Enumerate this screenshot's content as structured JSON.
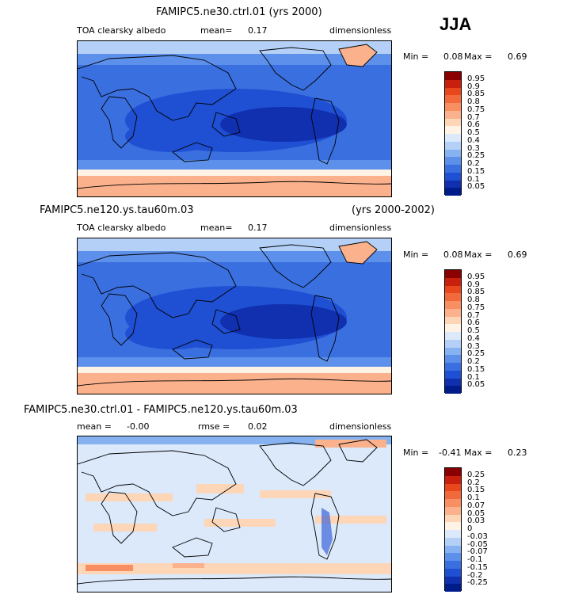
{
  "season": "JJA",
  "panels": [
    {
      "title": "FAMIPC5.ne30.ctrl.01 (yrs 2000)",
      "variable": "TOA clearsky albedo",
      "mean_label": "mean=",
      "mean_value": "0.17",
      "units": "dimensionless",
      "min_label": "Min =",
      "min_value": "0.08",
      "max_label": "Max =",
      "max_value": "0.69",
      "colorbar_labels": [
        "0.95",
        "0.9",
        "0.85",
        "0.8",
        "0.75",
        "0.7",
        "0.6",
        "0.5",
        "0.4",
        "0.3",
        "0.25",
        "0.2",
        "0.15",
        "0.1",
        "0.05"
      ],
      "colorbar_colors": [
        "#8b0000",
        "#c8200c",
        "#e8461c",
        "#f26a3c",
        "#f78f62",
        "#fab18c",
        "#fdd6b8",
        "#fff3e6",
        "#dbe9fb",
        "#b4d0f7",
        "#86b2f1",
        "#5c90ea",
        "#3a6fe0",
        "#1f4fd2",
        "#1030b0",
        "#001b8a"
      ]
    },
    {
      "title_left": "FAMIPC5.ne120.ys.tau60m.03",
      "title_right": "(yrs 2000-2002)",
      "variable": "TOA clearsky albedo",
      "mean_label": "mean=",
      "mean_value": "0.17",
      "units": "dimensionless",
      "min_label": "Min =",
      "min_value": "0.08",
      "max_label": "Max =",
      "max_value": "0.69",
      "colorbar_labels": [
        "0.95",
        "0.9",
        "0.85",
        "0.8",
        "0.75",
        "0.7",
        "0.6",
        "0.5",
        "0.4",
        "0.3",
        "0.25",
        "0.2",
        "0.15",
        "0.1",
        "0.05"
      ],
      "colorbar_colors": [
        "#8b0000",
        "#c8200c",
        "#e8461c",
        "#f26a3c",
        "#f78f62",
        "#fab18c",
        "#fdd6b8",
        "#fff3e6",
        "#dbe9fb",
        "#b4d0f7",
        "#86b2f1",
        "#5c90ea",
        "#3a6fe0",
        "#1f4fd2",
        "#1030b0",
        "#001b8a"
      ]
    },
    {
      "title": "FAMIPC5.ne30.ctrl.01 - FAMIPC5.ne120.ys.tau60m.03",
      "mean_label": "mean =",
      "mean_value": "-0.00",
      "rmse_label": "rmse =",
      "rmse_value": "0.02",
      "units": "dimensionless",
      "min_label": "Min =",
      "min_value": "-0.41",
      "max_label": "Max =",
      "max_value": "0.23",
      "colorbar_labels": [
        "0.25",
        "0.2",
        "0.15",
        "0.1",
        "0.07",
        "0.05",
        "0.03",
        "0",
        "-0.03",
        "-0.05",
        "-0.07",
        "-0.1",
        "-0.15",
        "-0.2",
        "-0.25"
      ],
      "colorbar_colors": [
        "#8b0000",
        "#c8200c",
        "#e8461c",
        "#f26a3c",
        "#f78f62",
        "#fab18c",
        "#fdd6b8",
        "#fff3e6",
        "#dbe9fb",
        "#b4d0f7",
        "#86b2f1",
        "#5c90ea",
        "#3a6fe0",
        "#1f4fd2",
        "#1030b0",
        "#001b8a"
      ]
    }
  ]
}
